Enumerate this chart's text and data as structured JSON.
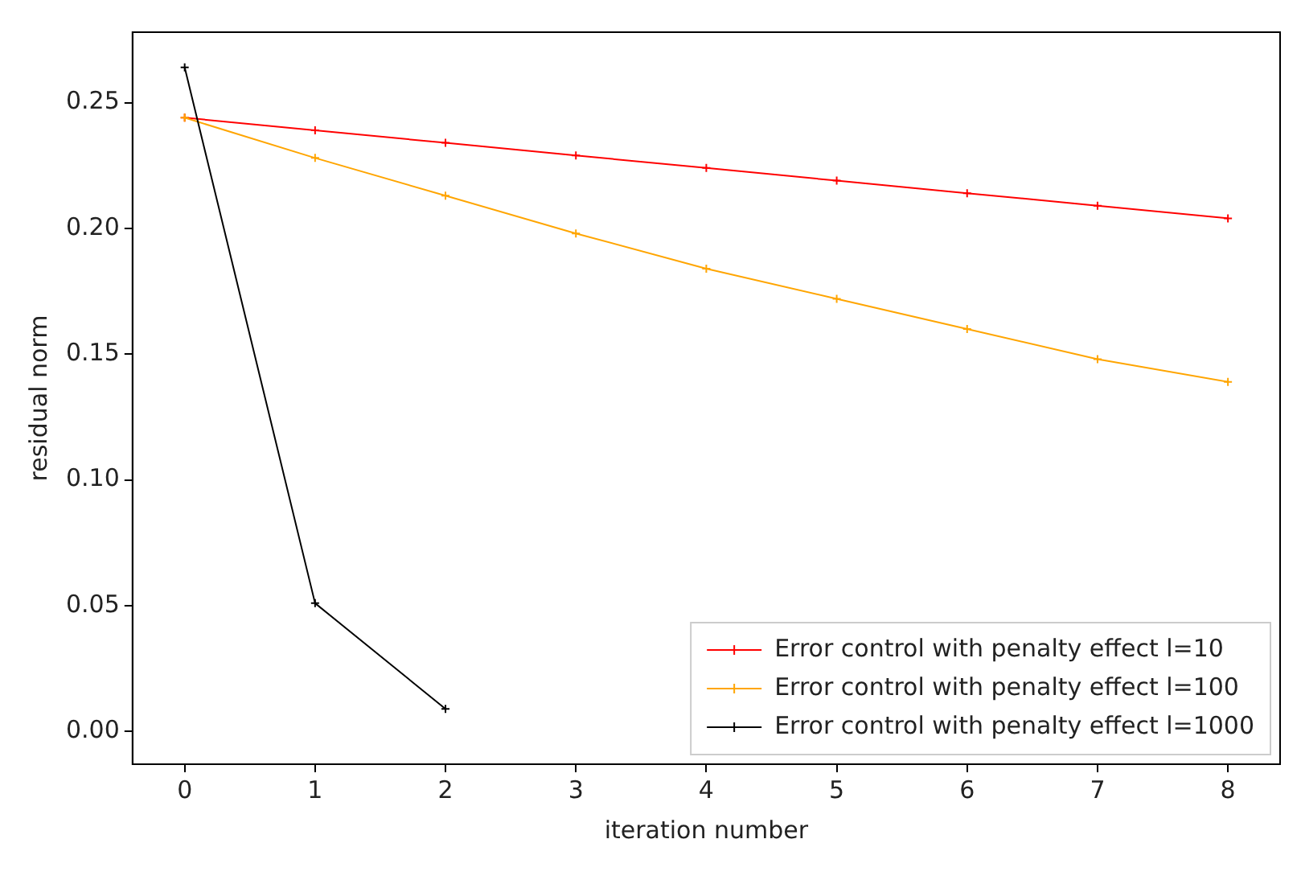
{
  "chart_data": {
    "type": "line",
    "xlabel": "iteration number",
    "ylabel": "residual norm",
    "x": [
      0,
      1,
      2,
      3,
      4,
      5,
      6,
      7,
      8
    ],
    "xlim": [
      -0.4,
      8.4
    ],
    "xticks": [
      0,
      1,
      2,
      3,
      4,
      5,
      6,
      7,
      8
    ],
    "ylim": [
      -0.013,
      0.278
    ],
    "yticks": [
      {
        "value": 0,
        "label": "0.00"
      },
      {
        "value": 0.05,
        "label": "0.05"
      },
      {
        "value": 0.1,
        "label": "0.10"
      },
      {
        "value": 0.15,
        "label": "0.15"
      },
      {
        "value": 0.2,
        "label": "0.20"
      },
      {
        "value": 0.25,
        "label": "0.25"
      }
    ],
    "series": [
      {
        "name": "Error control with penalty effect l=10",
        "color": "#ff0000",
        "values": [
          0.244,
          0.239,
          0.234,
          0.229,
          0.224,
          0.219,
          0.214,
          0.209,
          0.204
        ]
      },
      {
        "name": "Error control with penalty effect l=100",
        "color": "#ffa500",
        "values": [
          0.244,
          0.228,
          0.213,
          0.198,
          0.184,
          0.172,
          0.16,
          0.148,
          0.139
        ]
      },
      {
        "name": "Error control with penalty effect l=1000",
        "color": "#000000",
        "values": [
          0.264,
          0.051,
          0.009,
          null,
          null,
          null,
          null,
          null,
          null
        ]
      }
    ],
    "marker": "cross",
    "line_style": "solid",
    "grid": false,
    "legend": "bottom right"
  }
}
